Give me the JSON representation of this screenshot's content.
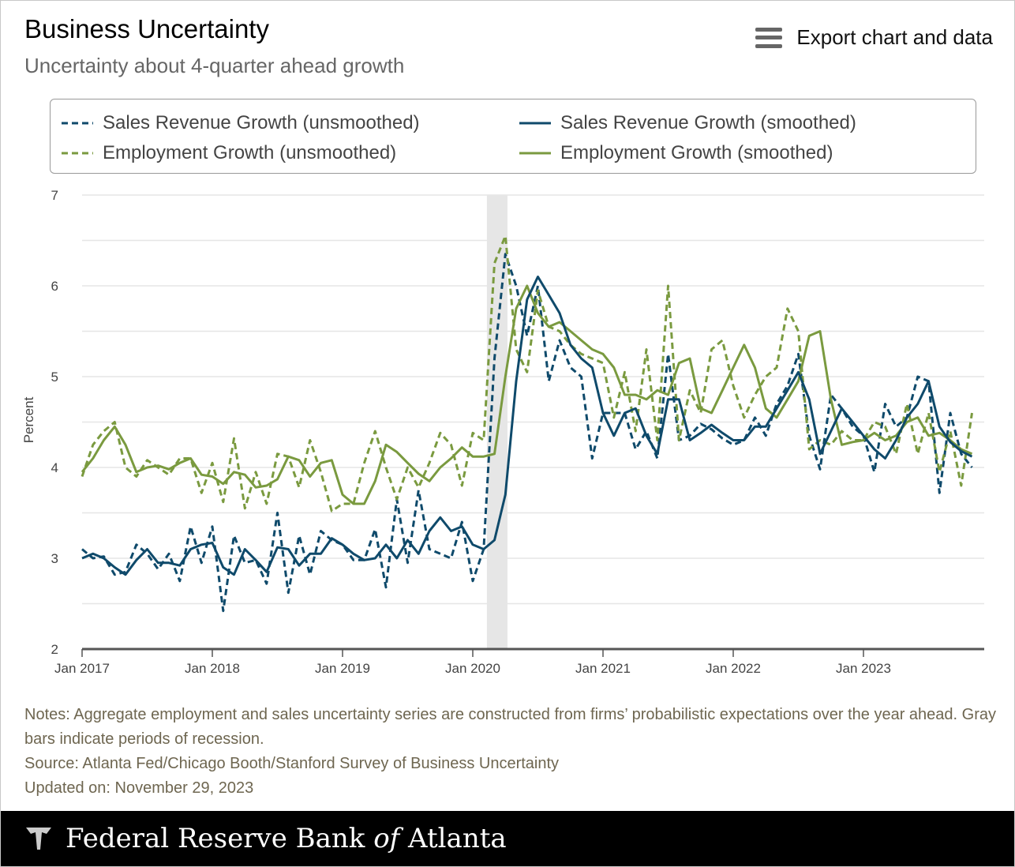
{
  "header": {
    "title": "Business Uncertainty",
    "subtitle": "Uncertainty about 4-quarter ahead growth",
    "export_label": "Export chart and data"
  },
  "colors": {
    "sales": "#0f4a6b",
    "employment": "#7a9a3f",
    "recession": "#e6e6e6"
  },
  "chart_data": {
    "type": "line",
    "ylabel": "Percent",
    "ylim": [
      2,
      7
    ],
    "yticks": [
      "2",
      "3",
      "4",
      "5",
      "6",
      "7"
    ],
    "xticks": [
      "Jan 2017",
      "Jan 2018",
      "Jan 2019",
      "Jan 2020",
      "Jan 2021",
      "Jan 2022",
      "Jan 2023"
    ],
    "x_start": "Jan 2017",
    "x_end": "Nov 2023",
    "frequency": "monthly",
    "recession": {
      "start": "Feb 2020",
      "end": "Apr 2020"
    },
    "series": [
      {
        "name": "Sales Revenue Growth (unsmoothed)",
        "color": "sales",
        "dashed": true,
        "values": [
          3.1,
          3.0,
          3.02,
          2.82,
          2.85,
          3.15,
          3.05,
          2.88,
          3.05,
          2.75,
          3.35,
          2.95,
          3.35,
          2.42,
          3.25,
          2.95,
          2.98,
          2.72,
          3.5,
          2.62,
          3.25,
          2.82,
          3.3,
          3.2,
          3.15,
          2.98,
          2.98,
          3.32,
          2.68,
          3.65,
          2.95,
          3.75,
          3.1,
          3.05,
          3.0,
          3.4,
          2.75,
          3.1,
          5.2,
          6.35,
          6.0,
          5.45,
          6.0,
          4.95,
          5.4,
          5.1,
          5.0,
          4.1,
          4.6,
          4.6,
          4.6,
          4.2,
          4.4,
          4.1,
          5.25,
          4.3,
          4.35,
          4.48,
          4.42,
          4.32,
          4.25,
          4.3,
          4.55,
          4.35,
          4.7,
          4.9,
          5.25,
          4.35,
          3.98,
          4.8,
          4.65,
          4.45,
          4.35,
          3.95,
          4.7,
          4.45,
          4.55,
          5.0,
          4.95,
          3.72,
          4.6,
          4.15,
          4.0
        ]
      },
      {
        "name": "Sales Revenue Growth (smoothed)",
        "color": "sales",
        "dashed": false,
        "values": [
          3.0,
          3.05,
          3.0,
          2.9,
          2.82,
          2.98,
          3.1,
          2.95,
          2.95,
          2.92,
          3.1,
          3.15,
          3.17,
          2.9,
          2.82,
          3.1,
          2.98,
          2.85,
          3.12,
          3.1,
          2.92,
          3.05,
          3.05,
          3.22,
          3.15,
          3.05,
          2.98,
          3.0,
          3.15,
          3.0,
          3.2,
          3.05,
          3.3,
          3.45,
          3.3,
          3.35,
          3.15,
          3.1,
          3.2,
          3.7,
          4.95,
          5.85,
          6.1,
          5.9,
          5.7,
          5.35,
          5.2,
          5.1,
          4.6,
          4.35,
          4.6,
          4.65,
          4.35,
          4.15,
          4.75,
          4.75,
          4.3,
          4.38,
          4.47,
          4.38,
          4.3,
          4.3,
          4.45,
          4.45,
          4.65,
          4.85,
          5.05,
          4.75,
          4.15,
          4.4,
          4.65,
          4.5,
          4.35,
          4.2,
          4.1,
          4.3,
          4.55,
          4.7,
          4.95,
          4.45,
          4.28,
          4.18,
          4.12
        ]
      },
      {
        "name": "Employment Growth (unsmoothed)",
        "color": "employment",
        "dashed": true,
        "values": [
          3.9,
          4.25,
          4.4,
          4.5,
          4.0,
          3.9,
          4.08,
          4.0,
          3.92,
          4.1,
          4.1,
          3.72,
          4.05,
          3.62,
          4.32,
          3.55,
          3.95,
          3.6,
          4.15,
          4.12,
          3.78,
          4.3,
          3.95,
          3.52,
          3.6,
          3.6,
          4.05,
          4.4,
          4.0,
          3.65,
          4.0,
          3.78,
          4.05,
          4.38,
          4.25,
          3.8,
          4.38,
          4.3,
          6.25,
          6.55,
          5.3,
          5.05,
          5.95,
          5.55,
          5.5,
          5.35,
          5.25,
          5.2,
          5.15,
          4.55,
          5.05,
          4.4,
          5.3,
          4.3,
          6.0,
          4.3,
          4.85,
          4.6,
          5.3,
          5.4,
          4.9,
          4.55,
          4.8,
          5.0,
          5.1,
          5.75,
          5.5,
          4.2,
          4.3,
          4.25,
          4.4,
          4.3,
          4.3,
          4.5,
          4.45,
          4.15,
          4.7,
          4.15,
          4.6,
          3.95,
          4.4,
          3.8,
          4.6
        ]
      },
      {
        "name": "Employment Growth (smoothed)",
        "color": "employment",
        "dashed": false,
        "values": [
          3.95,
          4.1,
          4.3,
          4.45,
          4.25,
          3.95,
          4.0,
          4.02,
          3.98,
          4.05,
          4.1,
          3.92,
          3.9,
          3.82,
          3.95,
          3.92,
          3.78,
          3.8,
          3.87,
          4.12,
          4.08,
          3.9,
          4.05,
          4.08,
          3.7,
          3.6,
          3.6,
          3.85,
          4.25,
          4.17,
          4.05,
          3.93,
          3.85,
          4.0,
          4.1,
          4.22,
          4.12,
          4.12,
          4.15,
          5.0,
          5.75,
          6.0,
          5.7,
          5.55,
          5.6,
          5.5,
          5.4,
          5.3,
          5.25,
          5.1,
          4.8,
          4.8,
          4.75,
          4.85,
          4.8,
          5.15,
          5.2,
          4.65,
          4.6,
          4.85,
          5.1,
          5.35,
          5.1,
          4.65,
          4.55,
          4.75,
          4.95,
          5.45,
          5.5,
          4.75,
          4.25,
          4.28,
          4.3,
          4.38,
          4.3,
          4.35,
          4.5,
          4.55,
          4.35,
          4.38,
          4.3,
          4.2,
          4.15
        ]
      }
    ]
  },
  "notes": {
    "line1": "Notes: Aggregate employment and sales uncertainty series are constructed from firms’ probabilistic expectations over the year ahead. Gray bars indicate periods of recession.",
    "source": "Source: Atlanta Fed/Chicago Booth/Stanford Survey of Business Uncertainty",
    "updated": "Updated on: November 29, 2023"
  },
  "footer": {
    "logo_text": "Federal Reserve Bank of Atlanta",
    "logo_pre": "Federal Reserve Bank ",
    "logo_of": "of",
    "logo_post": " Atlanta"
  }
}
